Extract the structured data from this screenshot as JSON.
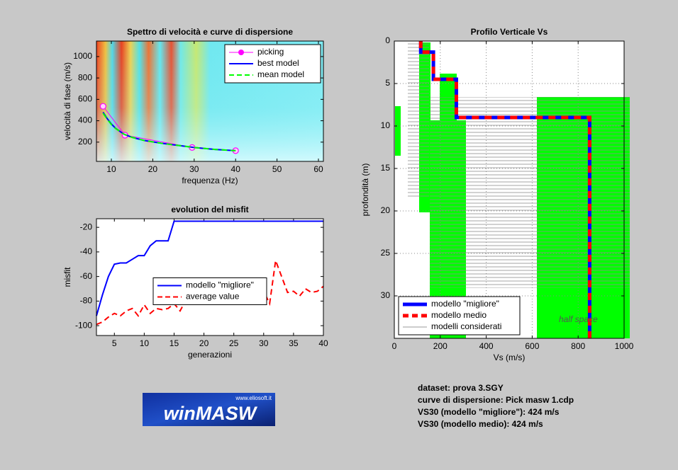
{
  "chart_data": [
    {
      "type": "line",
      "title": "Spettro di velocità e curve di dispersione",
      "xlabel": "frequenza (Hz)",
      "ylabel": "velocità di fase (m/s)",
      "xlim": [
        6.4,
        61.2
      ],
      "xticks": [
        10,
        20,
        30,
        40,
        50,
        60
      ],
      "ylim": [
        20,
        1145
      ],
      "yticks": [
        200,
        400,
        600,
        800,
        1000
      ],
      "grid": false,
      "legend": "upper right",
      "series": [
        {
          "name": "picking",
          "color": "#ff00ff",
          "marker": "o",
          "x": [
            8,
            13.3,
            29.5,
            40
          ],
          "values": [
            535,
            265,
            150,
            120
          ]
        },
        {
          "name": "best model",
          "color": "#0000ff",
          "x": [
            8,
            9,
            10,
            11,
            13,
            15,
            18,
            22,
            26,
            30,
            35,
            40
          ],
          "values": [
            480,
            420,
            370,
            330,
            275,
            245,
            215,
            190,
            170,
            150,
            132,
            120
          ]
        },
        {
          "name": "mean model",
          "color": "#00ff00",
          "dash": true,
          "x": [
            8,
            9,
            10,
            11,
            13,
            15,
            18,
            22,
            26,
            30,
            35,
            40
          ],
          "values": [
            470,
            415,
            365,
            328,
            275,
            245,
            215,
            190,
            170,
            150,
            132,
            120
          ]
        }
      ]
    },
    {
      "type": "line",
      "title": "evolution del misfit",
      "xlabel": "generazioni",
      "ylabel": "misfit",
      "xlim": [
        2,
        40
      ],
      "xticks": [
        5,
        10,
        15,
        20,
        25,
        30,
        35,
        40
      ],
      "ylim": [
        -108,
        -13
      ],
      "yticks": [
        -20,
        -40,
        -60,
        -80,
        -100
      ],
      "grid": false,
      "legend": "center",
      "x": [
        2,
        3,
        4,
        5,
        6,
        7,
        8,
        9,
        10,
        11,
        12,
        13,
        14,
        15,
        16,
        17,
        18,
        19,
        20,
        21,
        22,
        23,
        24,
        25,
        26,
        27,
        28,
        29,
        30,
        31,
        32,
        33,
        34,
        35,
        36,
        37,
        38,
        39,
        40
      ],
      "series": [
        {
          "name": "modello \"migliore\"",
          "color": "#0000ff",
          "values": [
            -92,
            -75,
            -60,
            -50,
            -49,
            -49,
            -46,
            -43,
            -43,
            -35,
            -31,
            -31,
            -31,
            -15,
            -15,
            -15,
            -15,
            -15,
            -15,
            -15,
            -15,
            -15,
            -15,
            -15,
            -15,
            -15,
            -15,
            -15,
            -15,
            -15,
            -15,
            -15,
            -15,
            -15,
            -15,
            -15,
            -15,
            -15,
            -15
          ]
        },
        {
          "name": "average value",
          "color": "#ff0000",
          "dash": true,
          "values": [
            -99,
            -97,
            -93,
            -90,
            -92,
            -88,
            -86,
            -92,
            -83,
            -90,
            -86,
            -87,
            -86,
            -82,
            -88,
            -79,
            -78,
            -75,
            -72,
            -77,
            -78,
            -76,
            -80,
            -82,
            -79,
            -76,
            -71,
            -75,
            -72,
            -82,
            -47,
            -60,
            -73,
            -72,
            -76,
            -70,
            -73,
            -72,
            -68
          ]
        }
      ]
    },
    {
      "type": "line",
      "title": "Profilo Verticale Vs",
      "xlabel": "Vs (m/s)",
      "ylabel": "profondità (m)",
      "xlim": [
        0,
        1000
      ],
      "xticks": [
        0,
        200,
        400,
        600,
        800,
        1000
      ],
      "ylim": [
        0,
        35
      ],
      "yticks": [
        0,
        5,
        10,
        15,
        20,
        25,
        30
      ],
      "y_reversed": true,
      "grid": true,
      "legend": "lower left",
      "annotation": "half space",
      "series": [
        {
          "name": "modello \"migliore\"",
          "color": "#0000ff",
          "width": 5,
          "x": [
            115,
            115,
            170,
            170,
            270,
            270,
            850,
            850
          ],
          "values": [
            0,
            1.3,
            1.3,
            4.5,
            4.5,
            9,
            9,
            35
          ]
        },
        {
          "name": "modello medio",
          "color": "#ff0000",
          "width": 5,
          "dash": true,
          "x": [
            115,
            115,
            170,
            170,
            270,
            270,
            850,
            850
          ],
          "values": [
            0,
            1.3,
            1.3,
            4.5,
            4.5,
            9,
            9,
            35
          ]
        },
        {
          "name": "modelli considerati",
          "color": "#999999",
          "width": 1,
          "x": [],
          "values": []
        }
      ]
    }
  ],
  "info": [
    "dataset: prova 3.SGY",
    "curve di dispersione: Pick masw 1.cdp",
    "VS30 (modello \"migliore\"): 424 m/s",
    "VS30 (modello medio): 424 m/s"
  ],
  "logo": {
    "title": "winMASW",
    "url": "www.eliosoft.it"
  }
}
